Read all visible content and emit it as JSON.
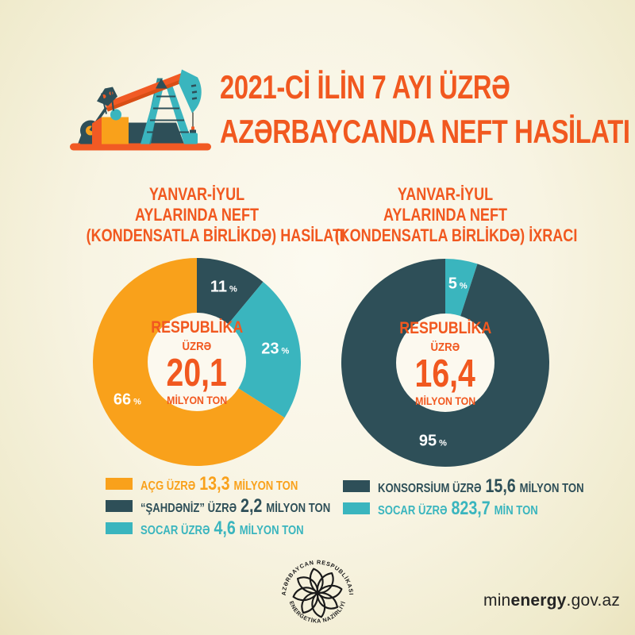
{
  "page": {
    "title_line1": "2021-Cİ İLİN 7 AYI ÜZRƏ",
    "title_line2": "AZƏRBAYCANDA NEFT HASİLATI"
  },
  "palette": {
    "accent_orange": "#F1581F",
    "amber": "#F9A11B",
    "dark_teal": "#2E4F58",
    "light_teal": "#3AB5BE",
    "background_center": "#FCFAF0",
    "background_edge": "#EBE4BF",
    "donut_hole": "#FCF9EF",
    "percent_label": "#FFFFFF",
    "footer_text": "#242424"
  },
  "chart_data": [
    {
      "type": "pie",
      "title": "YANVAR-İYUL AYLARINDA NEFT (KONDENSATLA BİRLİKDƏ) HASİLATI",
      "title_lines": [
        "YANVAR-İYUL",
        "AYLARINDA NEFT",
        "(KONDENSATLA BİRLİKDƏ) HASİLATI"
      ],
      "center": {
        "line1": "RESPUBLİKA",
        "line2": "ÜZRƏ",
        "value": "20,1",
        "unit": "MİLYON TON"
      },
      "slices": [
        {
          "label": "“ŞAHDƏNİZ” ÜZRƏ",
          "percent": 11,
          "color": "#2E4F58"
        },
        {
          "label": "SOCAR ÜZRƏ",
          "percent": 23,
          "color": "#3AB5BE"
        },
        {
          "label": "AÇG ÜZRƏ",
          "percent": 66,
          "color": "#F9A11B"
        }
      ],
      "legend": [
        {
          "label": "AÇG ÜZRƏ",
          "value": "13,3",
          "unit": "MİLYON TON",
          "color": "#F9A11B"
        },
        {
          "label": "“ŞAHDƏNİZ” ÜZRƏ",
          "value": "2,2",
          "unit": "MİLYON TON",
          "color": "#2E4F58"
        },
        {
          "label": "SOCAR ÜZRƏ",
          "value": "4,6",
          "unit": "MİLYON TON",
          "color": "#3AB5BE"
        }
      ]
    },
    {
      "type": "pie",
      "title": "YANVAR-İYUL AYLARINDA NEFT (KONDENSATLA BİRLİKDƏ) İXRACI",
      "title_lines": [
        "YANVAR-İYUL",
        "AYLARINDA NEFT",
        "(KONDENSATLA BİRLİKDƏ) İXRACI"
      ],
      "center": {
        "line1": "RESPUBLİKA",
        "line2": "ÜZRƏ",
        "value": "16,4",
        "unit": "MİLYON TON"
      },
      "slices": [
        {
          "label": "SOCAR ÜZRƏ",
          "percent": 5,
          "color": "#3AB5BE"
        },
        {
          "label": "KONSORSİUM ÜZRƏ",
          "percent": 95,
          "color": "#2E4F58"
        }
      ],
      "legend": [
        {
          "label": "KONSORSİUM ÜZRƏ",
          "value": "15,6",
          "unit": "MİLYON TON",
          "color": "#2E4F58"
        },
        {
          "label": "SOCAR ÜZRƏ",
          "value": "823,7",
          "unit": "MİN TON",
          "color": "#3AB5BE"
        }
      ]
    }
  ],
  "footer": {
    "logo_arc_top": "AZƏRBAYCAN RESPUBLİKASI",
    "logo_arc_bottom": "ENERGETİKA NAZİRLİYİ",
    "site_pre": "min",
    "site_bold": "energy",
    "site_post": ".gov.az"
  }
}
